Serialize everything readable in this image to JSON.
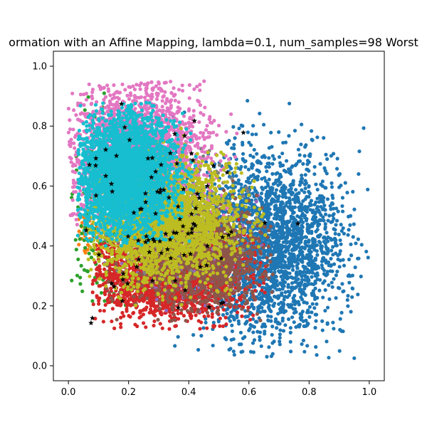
{
  "chart_data": {
    "type": "scatter",
    "title": "ormation with an Affine Mapping, lambda=0.1, num_samples=98 Worst",
    "xlabel": "",
    "ylabel": "",
    "xlim": [
      -0.05,
      1.05
    ],
    "ylim": [
      -0.05,
      1.05
    ],
    "xticks": [
      "0.0",
      "0.2",
      "0.4",
      "0.6",
      "0.8",
      "1.0"
    ],
    "yticks": [
      "0.0",
      "0.2",
      "0.4",
      "0.6",
      "0.8",
      "1.0"
    ],
    "grid": false,
    "legend": "none",
    "marker_size": 4.2,
    "series": [
      {
        "color": "#1f77b4",
        "count": 2600,
        "center": [
          0.66,
          0.4
        ],
        "spread": [
          0.13,
          0.15
        ],
        "bounds": [
          0.25,
          1.0,
          0.02,
          0.89
        ]
      },
      {
        "color": "#ff7f0e",
        "count": 40,
        "center": [
          0.07,
          0.45
        ],
        "spread": [
          0.03,
          0.04
        ],
        "bounds": [
          0.03,
          0.14,
          0.36,
          0.56
        ]
      },
      {
        "color": "#2ca02c",
        "count": 160,
        "center": [
          0.11,
          0.5
        ],
        "spread": [
          0.07,
          0.18
        ],
        "bounds": [
          0.01,
          0.55,
          0.2,
          0.95
        ]
      },
      {
        "color": "#d62728",
        "count": 2000,
        "center": [
          0.33,
          0.3
        ],
        "spread": [
          0.13,
          0.07
        ],
        "bounds": [
          0.08,
          0.66,
          0.12,
          0.55
        ]
      },
      {
        "color": "#9467bd",
        "count": 220,
        "center": [
          0.4,
          0.4
        ],
        "spread": [
          0.12,
          0.1
        ],
        "bounds": [
          0.12,
          0.65,
          0.15,
          0.65
        ]
      },
      {
        "color": "#8c564b",
        "count": 1300,
        "center": [
          0.42,
          0.37
        ],
        "spread": [
          0.12,
          0.09
        ],
        "bounds": [
          0.12,
          0.68,
          0.15,
          0.62
        ]
      },
      {
        "color": "#7f7f7f",
        "count": 250,
        "center": [
          0.3,
          0.52
        ],
        "spread": [
          0.12,
          0.1
        ],
        "bounds": [
          0.08,
          0.65,
          0.3,
          0.8
        ]
      },
      {
        "color": "#e377c2",
        "count": 2400,
        "center": [
          0.23,
          0.7
        ],
        "spread": [
          0.11,
          0.12
        ],
        "bounds": [
          0.0,
          0.56,
          0.42,
          0.95
        ]
      },
      {
        "color": "#bcbd22",
        "count": 2400,
        "center": [
          0.32,
          0.48
        ],
        "spread": [
          0.12,
          0.1
        ],
        "bounds": [
          0.06,
          0.66,
          0.2,
          0.82
        ]
      },
      {
        "color": "#17becf",
        "count": 3200,
        "center": [
          0.19,
          0.64
        ],
        "spread": [
          0.08,
          0.1
        ],
        "bounds": [
          0.03,
          0.43,
          0.4,
          0.88
        ]
      },
      {
        "color": "#000000",
        "marker": "star",
        "count": 98,
        "center": [
          0.3,
          0.5
        ],
        "spread": [
          0.17,
          0.18
        ],
        "bounds": [
          0.02,
          0.92,
          0.1,
          0.96
        ]
      }
    ]
  }
}
